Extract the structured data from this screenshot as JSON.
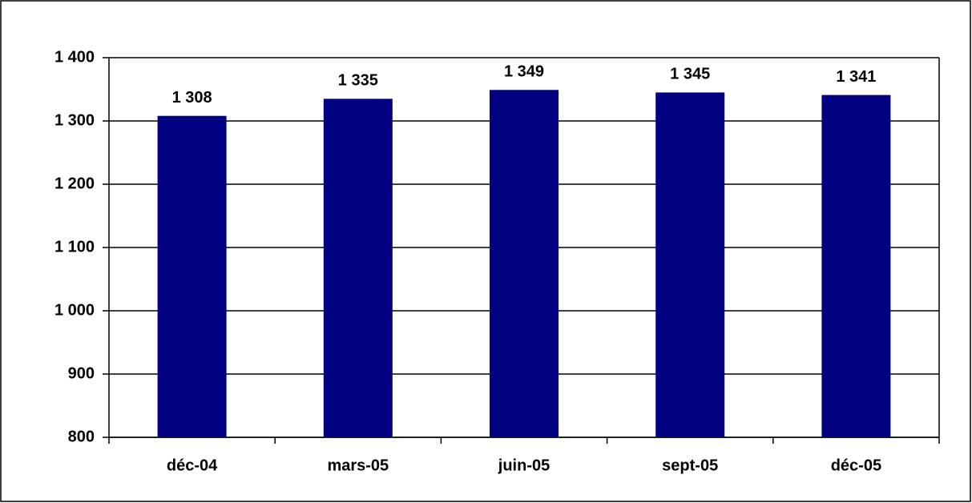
{
  "chart_data": {
    "type": "bar",
    "categories": [
      "déc-04",
      "mars-05",
      "juin-05",
      "sept-05",
      "déc-05"
    ],
    "values": [
      1308,
      1335,
      1349,
      1345,
      1341
    ],
    "value_labels": [
      "1 308",
      "1 335",
      "1 349",
      "1 345",
      "1 341"
    ],
    "color": "#000080",
    "ylim": [
      800,
      1400
    ],
    "yticks": [
      800,
      900,
      {
        "value": 1000,
        "label": "1 000"
      },
      {
        "value": 1100,
        "label": "1 100"
      },
      {
        "value": 1200,
        "label": "1 200"
      },
      {
        "value": 1300,
        "label": "1 300"
      },
      {
        "value": 1400,
        "label": "1 400"
      }
    ],
    "grid": true
  }
}
